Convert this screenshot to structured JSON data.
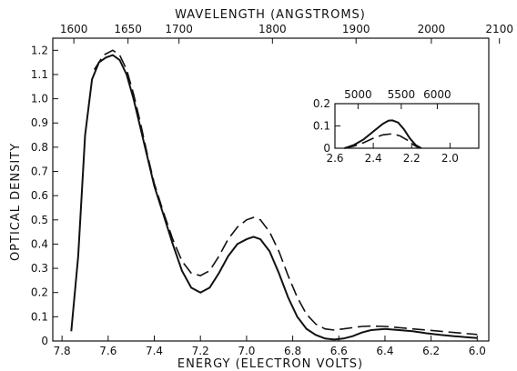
{
  "chart_data": [
    {
      "type": "line",
      "title": "",
      "xlabel": "ENERGY (ELECTRON VOLTS)",
      "ylabel": "OPTICAL DENSITY",
      "x2label": "WAVELENGTH (ANGSTROMS)",
      "xlim": [
        7.84,
        5.95
      ],
      "ylim": [
        0,
        1.25
      ],
      "x_ticks": [
        "7.8",
        "7.6",
        "7.4",
        "7.2",
        "7.0",
        "6.8",
        "6.6",
        "6.4",
        "6.2",
        "6.0"
      ],
      "y_ticks": [
        "0",
        "0.1",
        "0.2",
        "0.3",
        "0.4",
        "0.5",
        "0.6",
        "0.7",
        "0.8",
        "0.9",
        "1.0",
        "1.1",
        "1.2"
      ],
      "x2_ticks": [
        "1600",
        "1650",
        "1700",
        "1800",
        "1900",
        "2000",
        "2100"
      ],
      "grid": false,
      "series": [
        {
          "style": "solid",
          "x": [
            7.76,
            7.73,
            7.7,
            7.67,
            7.64,
            7.61,
            7.58,
            7.55,
            7.52,
            7.49,
            7.46,
            7.43,
            7.4,
            7.36,
            7.32,
            7.28,
            7.24,
            7.2,
            7.16,
            7.12,
            7.08,
            7.04,
            7.0,
            6.97,
            6.94,
            6.9,
            6.86,
            6.82,
            6.78,
            6.74,
            6.7,
            6.66,
            6.62,
            6.58,
            6.54,
            6.5,
            6.46,
            6.4,
            6.34,
            6.28,
            6.22,
            6.16,
            6.1,
            6.04,
            6.0
          ],
          "y": [
            0.04,
            0.35,
            0.85,
            1.08,
            1.15,
            1.17,
            1.18,
            1.16,
            1.1,
            1.0,
            0.88,
            0.76,
            0.64,
            0.52,
            0.4,
            0.29,
            0.22,
            0.2,
            0.22,
            0.28,
            0.35,
            0.4,
            0.42,
            0.43,
            0.42,
            0.37,
            0.28,
            0.18,
            0.1,
            0.05,
            0.025,
            0.01,
            0.006,
            0.01,
            0.02,
            0.035,
            0.045,
            0.05,
            0.045,
            0.04,
            0.032,
            0.025,
            0.02,
            0.015,
            0.012
          ]
        },
        {
          "style": "dashed",
          "x": [
            7.66,
            7.62,
            7.58,
            7.55,
            7.52,
            7.49,
            7.46,
            7.43,
            7.4,
            7.36,
            7.32,
            7.28,
            7.24,
            7.2,
            7.16,
            7.12,
            7.08,
            7.04,
            7.0,
            6.97,
            6.94,
            6.9,
            6.86,
            6.82,
            6.78,
            6.74,
            6.7,
            6.66,
            6.62,
            6.58,
            6.54,
            6.5,
            6.46,
            6.4,
            6.34,
            6.28,
            6.22,
            6.16,
            6.1,
            6.04,
            6.0
          ],
          "y": [
            1.12,
            1.18,
            1.2,
            1.18,
            1.12,
            1.02,
            0.9,
            0.77,
            0.65,
            0.53,
            0.42,
            0.33,
            0.28,
            0.27,
            0.29,
            0.35,
            0.42,
            0.47,
            0.5,
            0.51,
            0.5,
            0.45,
            0.37,
            0.27,
            0.18,
            0.11,
            0.07,
            0.05,
            0.045,
            0.05,
            0.055,
            0.06,
            0.062,
            0.06,
            0.055,
            0.05,
            0.045,
            0.04,
            0.035,
            0.03,
            0.027
          ]
        }
      ]
    },
    {
      "type": "line",
      "title": "",
      "xlabel": "",
      "ylabel": "",
      "xlim": [
        2.6,
        1.85
      ],
      "ylim": [
        0,
        0.2
      ],
      "x_ticks": [
        "2.6",
        "2.4",
        "2.2",
        "2.0"
      ],
      "y_ticks": [
        "0",
        "0.1",
        "0.2"
      ],
      "x2_ticks": [
        "5000",
        "5500",
        "6000"
      ],
      "grid": false,
      "series": [
        {
          "style": "solid",
          "x": [
            2.55,
            2.5,
            2.45,
            2.4,
            2.35,
            2.32,
            2.3,
            2.27,
            2.24,
            2.21,
            2.18,
            2.15
          ],
          "y": [
            0,
            0.015,
            0.04,
            0.075,
            0.11,
            0.124,
            0.125,
            0.115,
            0.085,
            0.045,
            0.015,
            0
          ]
        },
        {
          "style": "dashed",
          "x": [
            2.55,
            2.5,
            2.45,
            2.4,
            2.35,
            2.3,
            2.26,
            2.22,
            2.19,
            2.16
          ],
          "y": [
            0,
            0.01,
            0.025,
            0.045,
            0.06,
            0.065,
            0.055,
            0.035,
            0.015,
            0
          ]
        }
      ]
    }
  ]
}
